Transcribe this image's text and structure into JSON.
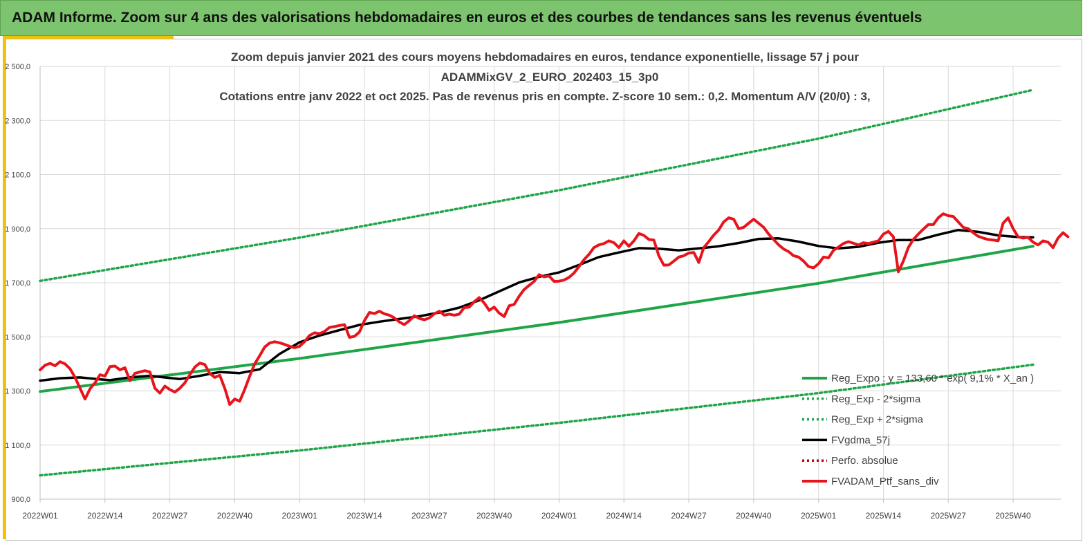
{
  "banner": {
    "title": "ADAM Informe. Zoom sur 4 ans des valorisations hebdomadaires en euros et des courbes de tendances sans les revenus éventuels"
  },
  "colors": {
    "banner": "#7dc46e",
    "accent": "#f2c200",
    "trend": "#1fa548",
    "smooth": "#000000",
    "portfolio": "#e8141c",
    "perf": "#c00000"
  },
  "chart_data": {
    "type": "line",
    "title": [
      "Zoom depuis janvier 2021 des cours moyens hebdomadaires  en euros, tendance exponentielle, lissage 57 j pour",
      "ADAMMixGV_2_EURO_202403_15_3p0",
      "Cotations  entre janv 2022 et oct 2025. Pas de revenus pris en compte. Z-score 10 sem.: 0,2. Momentum A/V (20/0) : 3,"
    ],
    "ylim": [
      900,
      2500
    ],
    "y_ticks": [
      "900,0",
      "1 100,0",
      "1 300,0",
      "1 500,0",
      "1 700,0",
      "1 900,0",
      "2 100,0",
      "2 300,0",
      "2 500,0"
    ],
    "x_ticks": [
      "2022W01",
      "2022W14",
      "2022W27",
      "2022W40",
      "2023W01",
      "2023W14",
      "2023W27",
      "2023W40",
      "2024W01",
      "2024W14",
      "2024W27",
      "2024W40",
      "2025W01",
      "2025W14",
      "2025W27",
      "2025W40"
    ],
    "grid": true,
    "legend_position": "bottom-right",
    "series": [
      {
        "name": "Reg_Expo : y = 133,60 * exp( 9,1% * X_an )",
        "style": "solid",
        "color": "#1fa548",
        "points": [
          [
            0,
            1298
          ],
          [
            52,
            1420
          ],
          [
            104,
            1553
          ],
          [
            156,
            1698
          ],
          [
            199,
            1835
          ]
        ]
      },
      {
        "name": "Reg_Exp - 2*sigma",
        "style": "dotted",
        "color": "#1fa548",
        "points": [
          [
            0,
            988
          ],
          [
            52,
            1080
          ],
          [
            104,
            1182
          ],
          [
            156,
            1292
          ],
          [
            199,
            1397
          ]
        ]
      },
      {
        "name": "Reg_Exp + 2*sigma",
        "style": "dotted",
        "color": "#1fa548",
        "points": [
          [
            0,
            1707
          ],
          [
            52,
            1867
          ],
          [
            104,
            2042
          ],
          [
            156,
            2233
          ],
          [
            199,
            2413
          ]
        ]
      },
      {
        "name": "FVgdma_57j",
        "style": "solid",
        "color": "#000000",
        "points": [
          [
            0,
            1338
          ],
          [
            4,
            1347
          ],
          [
            8,
            1350
          ],
          [
            12,
            1343
          ],
          [
            14,
            1340
          ],
          [
            18,
            1350
          ],
          [
            22,
            1356
          ],
          [
            26,
            1348
          ],
          [
            28,
            1344
          ],
          [
            32,
            1356
          ],
          [
            36,
            1370
          ],
          [
            40,
            1366
          ],
          [
            44,
            1380
          ],
          [
            48,
            1437
          ],
          [
            52,
            1480
          ],
          [
            56,
            1505
          ],
          [
            60,
            1525
          ],
          [
            64,
            1544
          ],
          [
            68,
            1556
          ],
          [
            72,
            1566
          ],
          [
            76,
            1576
          ],
          [
            80,
            1590
          ],
          [
            84,
            1608
          ],
          [
            88,
            1635
          ],
          [
            92,
            1668
          ],
          [
            96,
            1701
          ],
          [
            100,
            1722
          ],
          [
            104,
            1738
          ],
          [
            108,
            1766
          ],
          [
            112,
            1795
          ],
          [
            116,
            1812
          ],
          [
            120,
            1828
          ],
          [
            124,
            1826
          ],
          [
            128,
            1820
          ],
          [
            132,
            1827
          ],
          [
            136,
            1835
          ],
          [
            140,
            1847
          ],
          [
            144,
            1862
          ],
          [
            148,
            1864
          ],
          [
            152,
            1852
          ],
          [
            156,
            1836
          ],
          [
            160,
            1827
          ],
          [
            164,
            1833
          ],
          [
            168,
            1848
          ],
          [
            172,
            1858
          ],
          [
            176,
            1858
          ],
          [
            180,
            1878
          ],
          [
            184,
            1895
          ],
          [
            188,
            1888
          ],
          [
            192,
            1875
          ],
          [
            196,
            1869
          ],
          [
            199,
            1868
          ]
        ]
      },
      {
        "name": "Perfo. absolue",
        "style": "dotted",
        "color": "#c00000",
        "points": []
      },
      {
        "name": "FVADAM_Ptf_sans_div",
        "style": "solid",
        "color": "#e8141c",
        "points": [
          [
            0,
            1378
          ],
          [
            1,
            1395
          ],
          [
            2,
            1402
          ],
          [
            3,
            1393
          ],
          [
            4,
            1408
          ],
          [
            5,
            1400
          ],
          [
            6,
            1382
          ],
          [
            7,
            1350
          ],
          [
            8,
            1310
          ],
          [
            9,
            1270
          ],
          [
            10,
            1308
          ],
          [
            11,
            1330
          ],
          [
            12,
            1360
          ],
          [
            13,
            1355
          ],
          [
            14,
            1390
          ],
          [
            15,
            1392
          ],
          [
            16,
            1378
          ],
          [
            17,
            1386
          ],
          [
            18,
            1338
          ],
          [
            19,
            1365
          ],
          [
            20,
            1370
          ],
          [
            21,
            1375
          ],
          [
            22,
            1370
          ],
          [
            23,
            1310
          ],
          [
            24,
            1292
          ],
          [
            25,
            1318
          ],
          [
            26,
            1305
          ],
          [
            27,
            1296
          ],
          [
            28,
            1310
          ],
          [
            29,
            1330
          ],
          [
            30,
            1360
          ],
          [
            31,
            1388
          ],
          [
            32,
            1403
          ],
          [
            33,
            1398
          ],
          [
            34,
            1365
          ],
          [
            35,
            1350
          ],
          [
            36,
            1358
          ],
          [
            37,
            1310
          ],
          [
            38,
            1250
          ],
          [
            39,
            1270
          ],
          [
            40,
            1262
          ],
          [
            41,
            1305
          ],
          [
            42,
            1355
          ],
          [
            43,
            1400
          ],
          [
            44,
            1430
          ],
          [
            45,
            1462
          ],
          [
            46,
            1477
          ],
          [
            47,
            1482
          ],
          [
            48,
            1478
          ],
          [
            49,
            1472
          ],
          [
            50,
            1465
          ],
          [
            51,
            1460
          ],
          [
            52,
            1465
          ],
          [
            53,
            1482
          ],
          [
            54,
            1505
          ],
          [
            55,
            1515
          ],
          [
            56,
            1512
          ],
          [
            57,
            1520
          ],
          [
            58,
            1535
          ],
          [
            59,
            1538
          ],
          [
            60,
            1542
          ],
          [
            61,
            1545
          ],
          [
            62,
            1498
          ],
          [
            63,
            1502
          ],
          [
            64,
            1518
          ],
          [
            65,
            1560
          ],
          [
            66,
            1590
          ],
          [
            67,
            1586
          ],
          [
            68,
            1595
          ],
          [
            69,
            1585
          ],
          [
            70,
            1580
          ],
          [
            71,
            1570
          ],
          [
            72,
            1555
          ],
          [
            73,
            1545
          ],
          [
            74,
            1560
          ],
          [
            75,
            1578
          ],
          [
            76,
            1568
          ],
          [
            77,
            1563
          ],
          [
            78,
            1570
          ],
          [
            79,
            1585
          ],
          [
            80,
            1595
          ],
          [
            81,
            1580
          ],
          [
            82,
            1584
          ],
          [
            83,
            1580
          ],
          [
            84,
            1584
          ],
          [
            85,
            1608
          ],
          [
            86,
            1610
          ],
          [
            87,
            1630
          ],
          [
            88,
            1645
          ],
          [
            89,
            1625
          ],
          [
            90,
            1598
          ],
          [
            91,
            1610
          ],
          [
            92,
            1588
          ],
          [
            93,
            1575
          ],
          [
            94,
            1615
          ],
          [
            95,
            1620
          ],
          [
            96,
            1650
          ],
          [
            97,
            1675
          ],
          [
            98,
            1690
          ],
          [
            99,
            1705
          ],
          [
            100,
            1730
          ],
          [
            101,
            1722
          ],
          [
            102,
            1725
          ],
          [
            103,
            1705
          ],
          [
            104,
            1706
          ],
          [
            105,
            1710
          ],
          [
            106,
            1720
          ],
          [
            107,
            1736
          ],
          [
            108,
            1760
          ],
          [
            109,
            1785
          ],
          [
            110,
            1805
          ],
          [
            111,
            1830
          ],
          [
            112,
            1840
          ],
          [
            113,
            1845
          ],
          [
            114,
            1855
          ],
          [
            115,
            1848
          ],
          [
            116,
            1830
          ],
          [
            117,
            1855
          ],
          [
            118,
            1835
          ],
          [
            119,
            1855
          ],
          [
            120,
            1882
          ],
          [
            121,
            1875
          ],
          [
            122,
            1860
          ],
          [
            123,
            1858
          ],
          [
            124,
            1800
          ],
          [
            125,
            1765
          ],
          [
            126,
            1766
          ],
          [
            127,
            1780
          ],
          [
            128,
            1795
          ],
          [
            129,
            1800
          ],
          [
            130,
            1810
          ],
          [
            131,
            1812
          ],
          [
            132,
            1775
          ],
          [
            133,
            1830
          ],
          [
            134,
            1852
          ],
          [
            135,
            1876
          ],
          [
            136,
            1895
          ],
          [
            137,
            1925
          ],
          [
            138,
            1940
          ],
          [
            139,
            1935
          ],
          [
            140,
            1900
          ],
          [
            141,
            1905
          ],
          [
            142,
            1920
          ],
          [
            143,
            1935
          ],
          [
            144,
            1920
          ],
          [
            145,
            1905
          ],
          [
            146,
            1880
          ],
          [
            147,
            1860
          ],
          [
            148,
            1840
          ],
          [
            149,
            1825
          ],
          [
            150,
            1815
          ],
          [
            151,
            1800
          ],
          [
            152,
            1795
          ],
          [
            153,
            1780
          ],
          [
            154,
            1760
          ],
          [
            155,
            1755
          ],
          [
            156,
            1770
          ],
          [
            157,
            1795
          ],
          [
            158,
            1792
          ],
          [
            159,
            1820
          ],
          [
            160,
            1832
          ],
          [
            161,
            1845
          ],
          [
            162,
            1852
          ],
          [
            163,
            1846
          ],
          [
            164,
            1840
          ],
          [
            165,
            1848
          ],
          [
            166,
            1845
          ],
          [
            167,
            1850
          ],
          [
            168,
            1855
          ],
          [
            169,
            1880
          ],
          [
            170,
            1890
          ],
          [
            171,
            1870
          ],
          [
            172,
            1740
          ],
          [
            173,
            1780
          ],
          [
            174,
            1830
          ],
          [
            175,
            1860
          ],
          [
            176,
            1880
          ],
          [
            177,
            1898
          ],
          [
            178,
            1915
          ],
          [
            179,
            1915
          ],
          [
            180,
            1940
          ],
          [
            181,
            1955
          ],
          [
            182,
            1948
          ],
          [
            183,
            1945
          ],
          [
            184,
            1925
          ],
          [
            185,
            1905
          ],
          [
            186,
            1900
          ],
          [
            187,
            1885
          ],
          [
            188,
            1872
          ],
          [
            189,
            1865
          ],
          [
            190,
            1860
          ],
          [
            191,
            1858
          ],
          [
            192,
            1855
          ],
          [
            193,
            1920
          ],
          [
            194,
            1940
          ],
          [
            195,
            1900
          ],
          [
            196,
            1870
          ],
          [
            197,
            1865
          ],
          [
            198,
            1868
          ],
          [
            199,
            1850
          ],
          [
            200,
            1840
          ],
          [
            201,
            1855
          ],
          [
            202,
            1850
          ],
          [
            203,
            1830
          ],
          [
            204,
            1865
          ],
          [
            205,
            1885
          ],
          [
            206,
            1870
          ]
        ]
      }
    ]
  }
}
